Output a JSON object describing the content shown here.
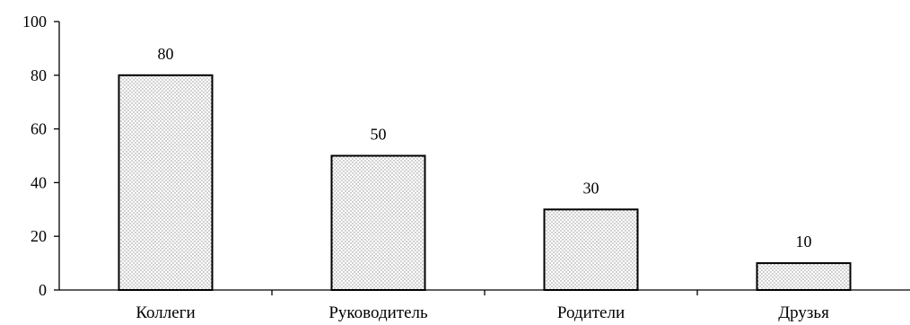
{
  "chart_data": {
    "type": "bar",
    "title": "",
    "xlabel": "",
    "ylabel": "",
    "categories": [
      "Коллеги",
      "Руководитель",
      "Родители",
      "Друзья"
    ],
    "values": [
      80,
      50,
      30,
      10
    ],
    "data_labels": [
      "80",
      "50",
      "30",
      "10"
    ],
    "ylim": [
      0,
      100
    ],
    "yticks": [
      0,
      20,
      40,
      60,
      80,
      100
    ],
    "grid": false,
    "legend": "none",
    "bar_pattern": "dotted",
    "colors": {
      "bar_fill": "#ffffff",
      "bar_dots": "#8c8c8c",
      "bar_outline": "#000000",
      "axis": "#000000",
      "text": "#000000"
    }
  }
}
